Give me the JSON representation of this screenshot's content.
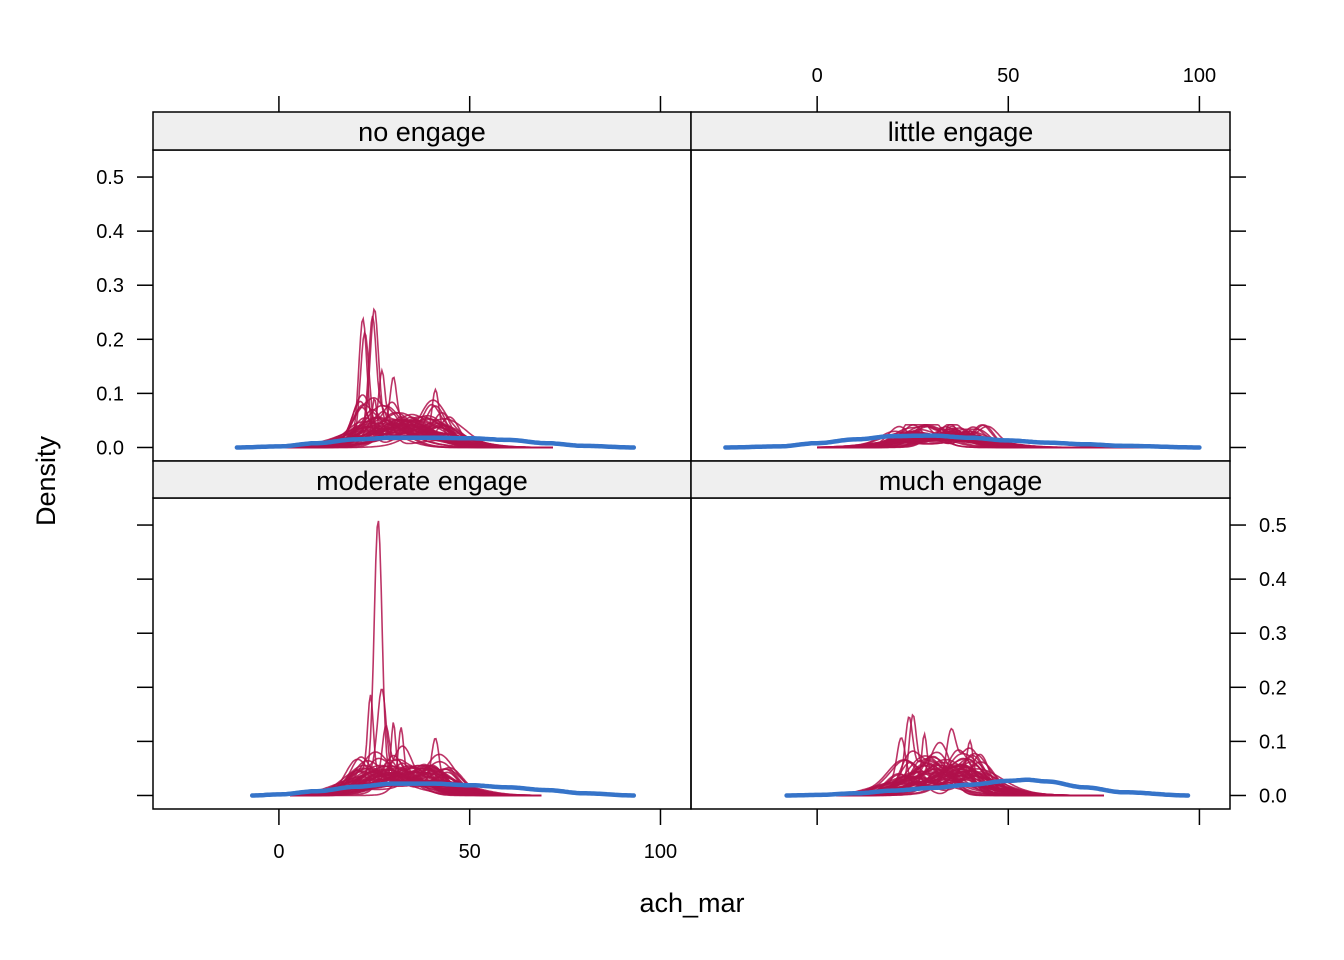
{
  "chart_data": {
    "type": "line",
    "subtype": "densityplot",
    "layout": "2x2 panels",
    "xlabel": "ach_mar",
    "ylabel": "Density",
    "xlim": [
      -33,
      108
    ],
    "ylim": [
      -0.025,
      0.55
    ],
    "x_ticks": [
      0,
      50,
      100
    ],
    "y_ticks": [
      0.0,
      0.1,
      0.2,
      0.3,
      0.4,
      0.5
    ],
    "x_tick_labels": [
      "0",
      "50",
      "100"
    ],
    "y_tick_labels": [
      "0.0",
      "0.1",
      "0.2",
      "0.3",
      "0.4",
      "0.5"
    ],
    "colors": {
      "observed": "#3674c9",
      "imputed": "#b0114b",
      "strip": "#efefef"
    },
    "panels": [
      {
        "name": "no engage",
        "observed": {
          "x": [
            -11,
            0,
            10,
            20,
            30,
            40,
            50,
            60,
            70,
            80,
            93
          ],
          "y": [
            0.0,
            0.002,
            0.008,
            0.015,
            0.018,
            0.018,
            0.017,
            0.014,
            0.008,
            0.003,
            0.0
          ]
        },
        "imputed_range": [
          -1,
          72
        ],
        "imputed_peaks": [
          [
            22,
            0.245
          ],
          [
            25,
            0.243
          ],
          [
            22.5,
            0.22
          ],
          [
            24.5,
            0.21
          ],
          [
            41,
            0.078
          ],
          [
            27,
            0.1
          ],
          [
            30,
            0.09
          ],
          [
            25,
            0.08
          ]
        ]
      },
      {
        "name": "little engage",
        "observed": {
          "x": [
            -24,
            -10,
            0,
            10,
            20,
            30,
            40,
            50,
            60,
            70,
            80,
            100
          ],
          "y": [
            0.0,
            0.002,
            0.008,
            0.015,
            0.021,
            0.022,
            0.018,
            0.013,
            0.009,
            0.006,
            0.003,
            0.0
          ]
        },
        "imputed_range": [
          0,
          100
        ],
        "imputed_peaks": [
          [
            35,
            0.04
          ],
          [
            33,
            0.038
          ],
          [
            40,
            0.036
          ]
        ]
      },
      {
        "name": "moderate engage",
        "observed": {
          "x": [
            -7,
            0,
            10,
            20,
            30,
            40,
            50,
            60,
            70,
            80,
            93
          ],
          "y": [
            0.0,
            0.002,
            0.008,
            0.016,
            0.022,
            0.022,
            0.019,
            0.015,
            0.01,
            0.004,
            0.0
          ]
        },
        "imputed_range": [
          3,
          69
        ],
        "imputed_peaks": [
          [
            26,
            0.517
          ],
          [
            24,
            0.16
          ],
          [
            27,
            0.16
          ],
          [
            30,
            0.115
          ],
          [
            41,
            0.09
          ],
          [
            32,
            0.1
          ],
          [
            28,
            0.095
          ]
        ]
      },
      {
        "name": "much engage",
        "observed": {
          "x": [
            -8,
            0,
            10,
            20,
            30,
            40,
            50,
            55,
            60,
            70,
            80,
            97
          ],
          "y": [
            0.0,
            0.001,
            0.004,
            0.009,
            0.014,
            0.02,
            0.027,
            0.029,
            0.026,
            0.015,
            0.006,
            0.0
          ]
        },
        "imputed_range": [
          5,
          75
        ],
        "imputed_peaks": [
          [
            25,
            0.12
          ],
          [
            24,
            0.11
          ],
          [
            28,
            0.1
          ],
          [
            35,
            0.09
          ],
          [
            40,
            0.07
          ],
          [
            22,
            0.09
          ]
        ]
      }
    ]
  }
}
